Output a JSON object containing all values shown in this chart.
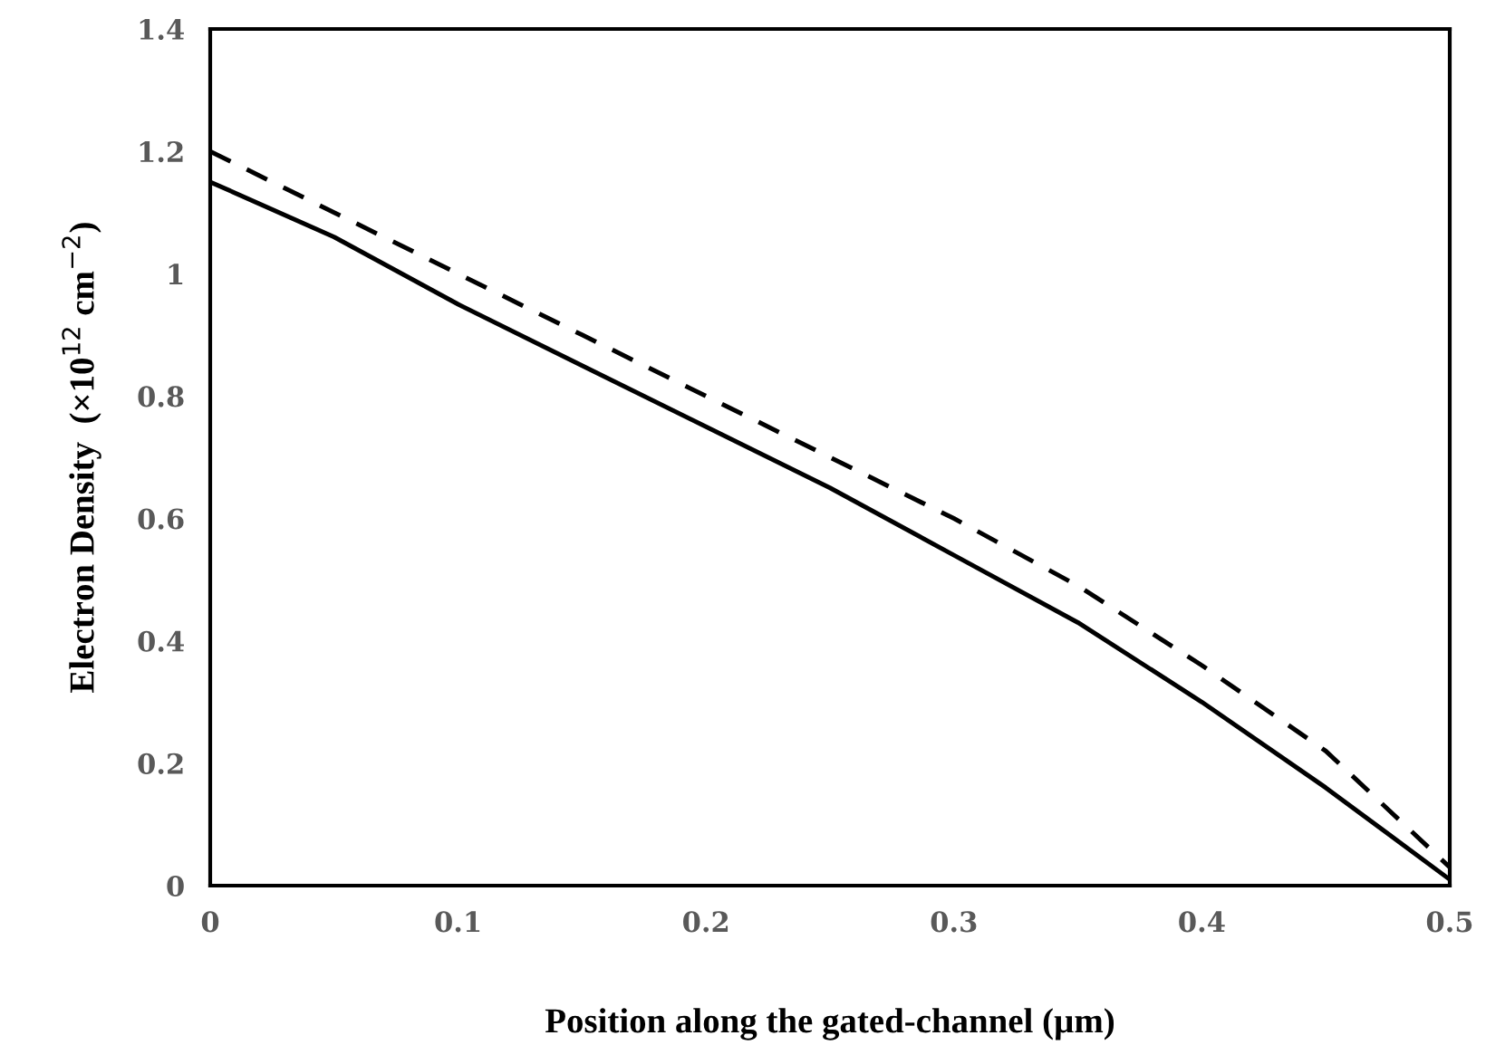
{
  "chart_data": {
    "type": "line",
    "xlabel": "Position along the gated-channel (µm)",
    "ylabel": "Electron Density  (×10$^{12}$ cm$^{−2}$)",
    "x": [
      0,
      0.05,
      0.1,
      0.15,
      0.2,
      0.25,
      0.3,
      0.35,
      0.4,
      0.45,
      0.5
    ],
    "series": [
      {
        "color": "#000000",
        "line_style": "solid",
        "values": [
          1.15,
          1.06,
          0.95,
          0.85,
          0.75,
          0.65,
          0.54,
          0.43,
          0.3,
          0.16,
          0.01
        ]
      },
      {
        "color": "#000000",
        "line_style": "dashed",
        "values": [
          1.2,
          1.1,
          1.0,
          0.9,
          0.8,
          0.7,
          0.6,
          0.49,
          0.36,
          0.22,
          0.03
        ]
      }
    ],
    "xlim": [
      0,
      0.5
    ],
    "xticks": [
      0,
      0.1,
      0.2,
      0.3,
      0.4,
      0.5
    ],
    "ylim": [
      0,
      1.4
    ],
    "yticks": [
      0,
      0.2,
      0.4,
      0.6,
      0.8,
      1,
      1.2,
      1.4
    ],
    "grid": false,
    "marker": "none"
  }
}
